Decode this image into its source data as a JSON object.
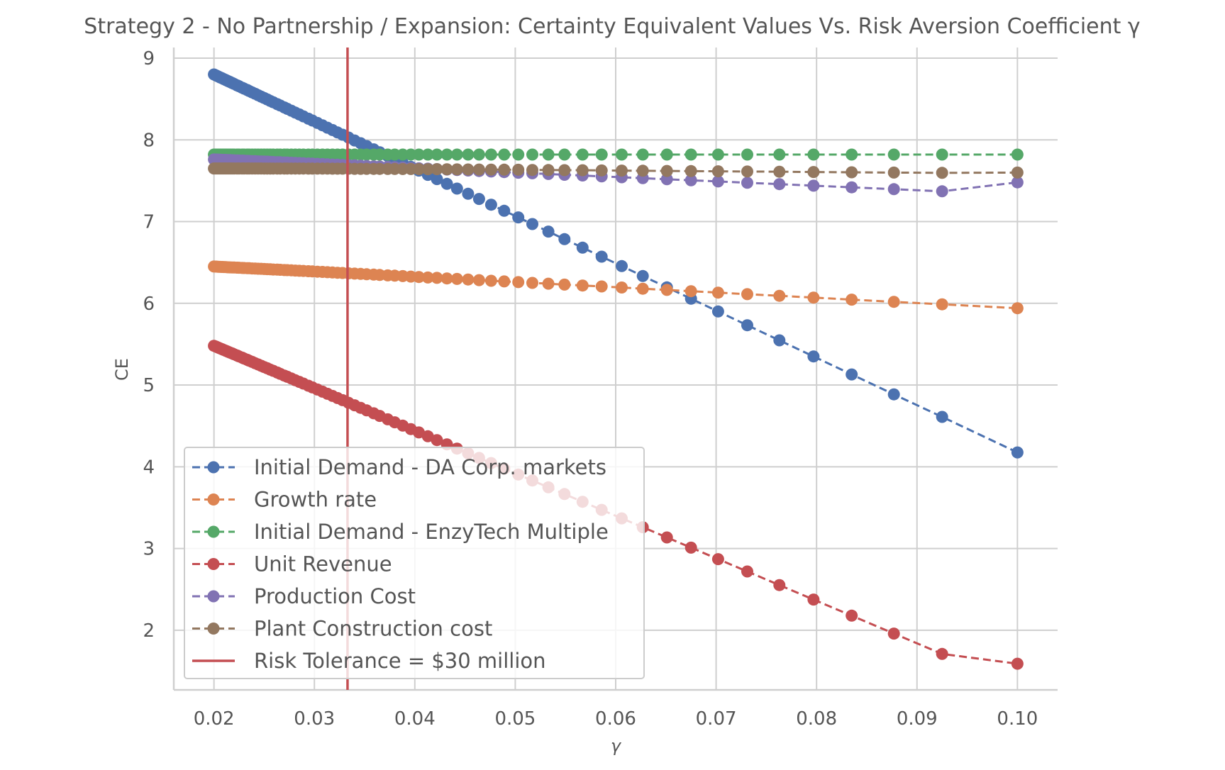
{
  "colors": {
    "blue": "#4c72b0",
    "orange": "#dd8452",
    "green": "#55a868",
    "red": "#c44e52",
    "purple": "#8172b3",
    "brown": "#937860"
  },
  "chart_data": {
    "type": "line",
    "title": "Strategy 2 - No Partnership / Expansion: Certainty Equivalent Values Vs. Risk Aversion Coefficient γ",
    "xlabel": "γ",
    "ylabel": "CE",
    "xlim": [
      0.016,
      0.104
    ],
    "ylim": [
      1.27,
      9.13
    ],
    "xticks": [
      0.02,
      0.03,
      0.04,
      0.05,
      0.06,
      0.07,
      0.08,
      0.09,
      0.1
    ],
    "xtick_labels": [
      "0.02",
      "0.03",
      "0.04",
      "0.05",
      "0.06",
      "0.07",
      "0.08",
      "0.09",
      "0.10"
    ],
    "yticks": [
      2,
      3,
      4,
      5,
      6,
      7,
      8,
      9
    ],
    "ytick_labels": [
      "2",
      "3",
      "4",
      "5",
      "6",
      "7",
      "8",
      "9"
    ],
    "grid": true,
    "legend_position": "lower-left",
    "x": [
      0.02,
      0.0202,
      0.0204,
      0.0206,
      0.0208,
      0.021,
      0.0212,
      0.0214,
      0.0216,
      0.0218,
      0.022,
      0.0223,
      0.0225,
      0.0228,
      0.023,
      0.0233,
      0.0235,
      0.0238,
      0.0241,
      0.0244,
      0.0247,
      0.025,
      0.0253,
      0.0256,
      0.0259,
      0.0263,
      0.0266,
      0.027,
      0.0273,
      0.0277,
      0.0281,
      0.0285,
      0.0289,
      0.0294,
      0.0298,
      0.0303,
      0.0308,
      0.0313,
      0.0318,
      0.0323,
      0.0328,
      0.0334,
      0.034,
      0.0346,
      0.0352,
      0.0359,
      0.0365,
      0.0373,
      0.038,
      0.0388,
      0.0396,
      0.0404,
      0.0413,
      0.0422,
      0.0432,
      0.0442,
      0.0453,
      0.0464,
      0.0476,
      0.0489,
      0.0503,
      0.0517,
      0.0533,
      0.0549,
      0.0567,
      0.0586,
      0.0606,
      0.0627,
      0.0651,
      0.0675,
      0.0702,
      0.0731,
      0.0763,
      0.0797,
      0.0835,
      0.0877,
      0.0925,
      0.1
    ],
    "series": [
      {
        "name": "Initial Demand - DA Corp. markets",
        "color": "#4c72b0",
        "line": "dashed",
        "marker": "circle",
        "values": [
          8.8,
          8.788,
          8.777,
          8.765,
          8.754,
          8.742,
          8.731,
          8.719,
          8.708,
          8.696,
          8.685,
          8.667,
          8.656,
          8.638,
          8.627,
          8.61,
          8.598,
          8.581,
          8.564,
          8.546,
          8.529,
          8.512,
          8.495,
          8.477,
          8.46,
          8.437,
          8.42,
          8.397,
          8.38,
          8.357,
          8.334,
          8.311,
          8.288,
          8.259,
          8.236,
          8.207,
          8.178,
          8.149,
          8.12,
          8.091,
          8.063,
          8.028,
          7.993,
          7.959,
          7.924,
          7.884,
          7.849,
          7.803,
          7.762,
          7.716,
          7.67,
          7.624,
          7.572,
          7.52,
          7.462,
          7.404,
          7.34,
          7.277,
          7.207,
          7.132,
          7.051,
          6.97,
          6.878,
          6.785,
          6.681,
          6.571,
          6.455,
          6.334,
          6.195,
          6.056,
          5.9,
          5.732,
          5.547,
          5.35,
          5.13,
          4.886,
          4.61,
          4.175
        ]
      },
      {
        "name": "Growth rate",
        "color": "#dd8452",
        "line": "dashed",
        "marker": "circle",
        "values": [
          6.45,
          6.449,
          6.447,
          6.446,
          6.445,
          6.444,
          6.443,
          6.441,
          6.44,
          6.439,
          6.438,
          6.436,
          6.435,
          6.433,
          6.432,
          6.43,
          6.429,
          6.427,
          6.425,
          6.423,
          6.422,
          6.42,
          6.418,
          6.416,
          6.414,
          6.412,
          6.41,
          6.407,
          6.406,
          6.403,
          6.401,
          6.398,
          6.396,
          6.393,
          6.39,
          6.387,
          6.384,
          6.381,
          6.377,
          6.374,
          6.371,
          6.367,
          6.363,
          6.36,
          6.356,
          6.351,
          6.347,
          6.342,
          6.338,
          6.333,
          6.327,
          6.322,
          6.316,
          6.311,
          6.304,
          6.298,
          6.291,
          6.284,
          6.276,
          6.268,
          6.259,
          6.25,
          6.24,
          6.229,
          6.218,
          6.206,
          6.193,
          6.179,
          6.164,
          6.148,
          6.131,
          6.112,
          6.092,
          6.07,
          6.045,
          6.018,
          5.988,
          5.94
        ]
      },
      {
        "name": "Initial Demand - EnzyTech Multiple",
        "color": "#55a868",
        "line": "dashed",
        "marker": "circle",
        "values": [
          7.82,
          7.82,
          7.82,
          7.82,
          7.82,
          7.82,
          7.82,
          7.82,
          7.82,
          7.82,
          7.82,
          7.82,
          7.82,
          7.82,
          7.82,
          7.82,
          7.82,
          7.82,
          7.82,
          7.82,
          7.82,
          7.82,
          7.82,
          7.82,
          7.82,
          7.82,
          7.82,
          7.82,
          7.82,
          7.82,
          7.82,
          7.82,
          7.82,
          7.82,
          7.82,
          7.82,
          7.82,
          7.82,
          7.82,
          7.82,
          7.82,
          7.82,
          7.82,
          7.82,
          7.82,
          7.82,
          7.82,
          7.82,
          7.82,
          7.82,
          7.82,
          7.82,
          7.82,
          7.82,
          7.82,
          7.82,
          7.82,
          7.82,
          7.82,
          7.82,
          7.82,
          7.82,
          7.82,
          7.82,
          7.82,
          7.82,
          7.82,
          7.82,
          7.82,
          7.82,
          7.82,
          7.82,
          7.82,
          7.82,
          7.82,
          7.82,
          7.82,
          7.82
        ]
      },
      {
        "name": "Unit Revenue",
        "color": "#c44e52",
        "line": "dashed",
        "marker": "circle",
        "values": [
          5.48,
          5.47,
          5.459,
          5.449,
          5.439,
          5.428,
          5.418,
          5.407,
          5.397,
          5.387,
          5.376,
          5.361,
          5.35,
          5.335,
          5.324,
          5.309,
          5.298,
          5.283,
          5.267,
          5.252,
          5.236,
          5.22,
          5.205,
          5.189,
          5.174,
          5.153,
          5.137,
          5.116,
          5.101,
          5.08,
          5.059,
          5.039,
          5.018,
          4.992,
          4.971,
          4.945,
          4.919,
          4.893,
          4.867,
          4.841,
          4.815,
          4.783,
          4.752,
          4.721,
          4.69,
          4.654,
          4.622,
          4.581,
          4.544,
          4.503,
          4.461,
          4.42,
          4.373,
          4.326,
          4.274,
          4.222,
          4.165,
          4.108,
          4.045,
          3.977,
          3.905,
          3.832,
          3.749,
          3.666,
          3.572,
          3.473,
          3.369,
          3.26,
          3.135,
          3.01,
          2.87,
          2.719,
          2.552,
          2.375,
          2.178,
          1.959,
          1.71,
          1.59
        ]
      },
      {
        "name": "Production Cost",
        "color": "#8172b3",
        "line": "dashed",
        "marker": "circle",
        "values": [
          7.76,
          7.759,
          7.758,
          7.757,
          7.756,
          7.755,
          7.754,
          7.753,
          7.752,
          7.751,
          7.75,
          7.748,
          7.747,
          7.746,
          7.745,
          7.743,
          7.742,
          7.74,
          7.739,
          7.737,
          7.736,
          7.734,
          7.733,
          7.731,
          7.729,
          7.727,
          7.726,
          7.724,
          7.722,
          7.72,
          7.718,
          7.716,
          7.714,
          7.711,
          7.709,
          7.706,
          7.704,
          7.701,
          7.698,
          7.696,
          7.693,
          7.69,
          7.687,
          7.683,
          7.68,
          7.676,
          7.673,
          7.669,
          7.665,
          7.66,
          7.656,
          7.652,
          7.647,
          7.642,
          7.637,
          7.631,
          7.625,
          7.619,
          7.613,
          7.606,
          7.598,
          7.591,
          7.582,
          7.573,
          7.564,
          7.553,
          7.542,
          7.531,
          7.518,
          7.505,
          7.491,
          7.475,
          7.458,
          7.439,
          7.419,
          7.397,
          7.371,
          7.48
        ]
      },
      {
        "name": "Plant Construction cost",
        "color": "#937860",
        "line": "dashed",
        "marker": "circle",
        "values": [
          7.65,
          7.65,
          7.65,
          7.65,
          7.65,
          7.65,
          7.65,
          7.65,
          7.65,
          7.65,
          7.65,
          7.65,
          7.65,
          7.65,
          7.65,
          7.65,
          7.65,
          7.65,
          7.65,
          7.65,
          7.65,
          7.649,
          7.649,
          7.649,
          7.649,
          7.649,
          7.649,
          7.649,
          7.649,
          7.649,
          7.649,
          7.649,
          7.649,
          7.648,
          7.648,
          7.648,
          7.648,
          7.648,
          7.647,
          7.647,
          7.647,
          7.647,
          7.646,
          7.646,
          7.646,
          7.645,
          7.645,
          7.644,
          7.644,
          7.643,
          7.643,
          7.642,
          7.641,
          7.641,
          7.64,
          7.639,
          7.638,
          7.637,
          7.636,
          7.635,
          7.634,
          7.632,
          7.631,
          7.629,
          7.628,
          7.626,
          7.624,
          7.622,
          7.62,
          7.618,
          7.615,
          7.613,
          7.61,
          7.607,
          7.603,
          7.6,
          7.596,
          7.6
        ]
      }
    ],
    "vline": {
      "label": "Risk Tolerance = $30 million",
      "x": 0.0333,
      "color": "#c44e52"
    }
  }
}
